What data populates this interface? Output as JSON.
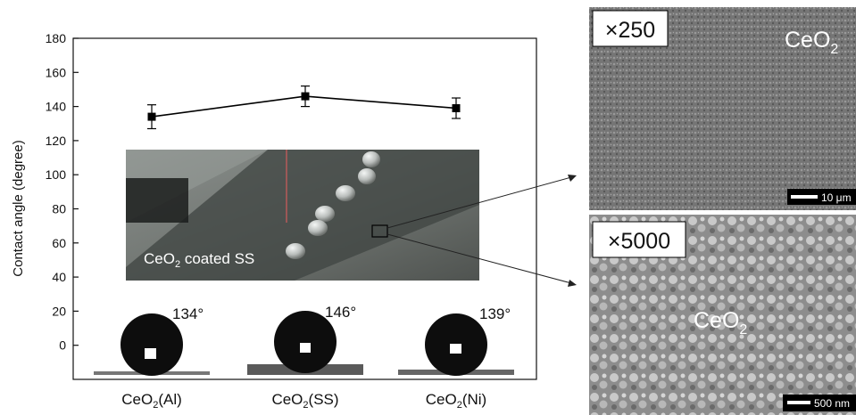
{
  "chart_data": {
    "type": "line",
    "ylabel": "Contact angle (degree)",
    "ylim": [
      -20,
      180
    ],
    "yticks": [
      0,
      20,
      40,
      60,
      80,
      100,
      120,
      140,
      160,
      180
    ],
    "grid": false,
    "categories": [
      {
        "base": "CeO",
        "sub": "2",
        "rest": "(Al)"
      },
      {
        "base": "CeO",
        "sub": "2",
        "rest": "(SS)"
      },
      {
        "base": "CeO",
        "sub": "2",
        "rest": "(Ni)"
      }
    ],
    "series": [
      {
        "values": [
          134,
          146,
          139
        ],
        "error": [
          7,
          6,
          6
        ],
        "color": "#000000"
      }
    ],
    "droplet_labels": [
      "134°",
      "146°",
      "139°"
    ],
    "inset_photo_label": {
      "base": "CeO",
      "sub": "2",
      "rest": " coated SS"
    }
  },
  "sem_panels": [
    {
      "magnification": "×250",
      "material": {
        "base": "CeO",
        "sub": "2"
      },
      "scale_bar": "10 μm"
    },
    {
      "magnification": "×5000",
      "material": {
        "base": "CeO",
        "sub": "2"
      },
      "scale_bar": "500 nm"
    }
  ]
}
